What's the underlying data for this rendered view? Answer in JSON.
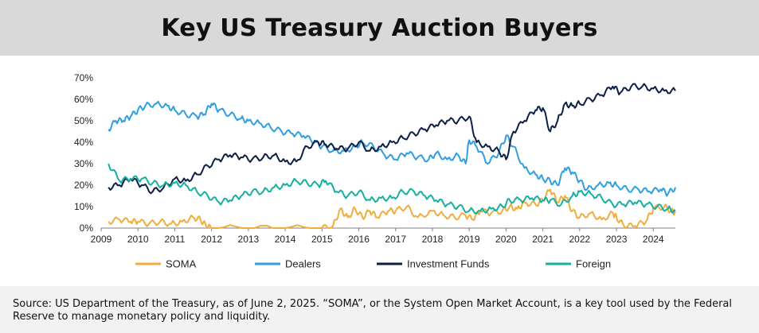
{
  "title": "Key US Treasury Auction Buyers",
  "source_note": "Source: US Department of the Treasury, as of June 2, 2025. “SOMA”, or the System Open Market Account, is a key tool used by the Federal Reserve to manage monetary policy and liquidity.",
  "chart_data": {
    "type": "line",
    "title": "Key US Treasury Auction Buyers",
    "xlabel": "",
    "ylabel": "",
    "xlim": [
      2009.0,
      2024.6
    ],
    "ylim": [
      0,
      70
    ],
    "x_ticks": [
      "2009",
      "2010",
      "2011",
      "2012",
      "2013",
      "2014",
      "2015",
      "2016",
      "2017",
      "2018",
      "2019",
      "2020",
      "2021",
      "2022",
      "2023",
      "2024"
    ],
    "y_ticks": [
      "0%",
      "10%",
      "20%",
      "30%",
      "40%",
      "50%",
      "60%",
      "70%"
    ],
    "grid": "none",
    "legend_position": "bottom",
    "series": [
      {
        "name": "SOMA",
        "color": "#f0ad3c",
        "points": [
          [
            2009.2,
            3
          ],
          [
            2009.5,
            4
          ],
          [
            2009.8,
            3
          ],
          [
            2010.0,
            3
          ],
          [
            2010.3,
            2
          ],
          [
            2010.6,
            3
          ],
          [
            2010.9,
            2
          ],
          [
            2011.2,
            3
          ],
          [
            2011.5,
            5
          ],
          [
            2011.7,
            4
          ],
          [
            2011.85,
            1
          ],
          [
            2012.0,
            0
          ],
          [
            2013.0,
            0
          ],
          [
            2014.0,
            0
          ],
          [
            2015.0,
            0
          ],
          [
            2015.3,
            1
          ],
          [
            2015.5,
            9
          ],
          [
            2015.7,
            5
          ],
          [
            2015.9,
            9
          ],
          [
            2016.1,
            5
          ],
          [
            2016.3,
            8
          ],
          [
            2016.5,
            5
          ],
          [
            2016.8,
            8
          ],
          [
            2017.0,
            8
          ],
          [
            2017.3,
            10
          ],
          [
            2017.6,
            5
          ],
          [
            2018.0,
            8
          ],
          [
            2018.3,
            6
          ],
          [
            2018.6,
            5
          ],
          [
            2018.9,
            6
          ],
          [
            2019.1,
            4
          ],
          [
            2019.3,
            8
          ],
          [
            2019.6,
            7
          ],
          [
            2019.9,
            8
          ],
          [
            2020.1,
            10
          ],
          [
            2020.3,
            9
          ],
          [
            2020.5,
            12
          ],
          [
            2020.8,
            11
          ],
          [
            2021.0,
            13
          ],
          [
            2021.2,
            18
          ],
          [
            2021.4,
            12
          ],
          [
            2021.6,
            15
          ],
          [
            2021.8,
            8
          ],
          [
            2022.0,
            5
          ],
          [
            2022.3,
            7
          ],
          [
            2022.6,
            4
          ],
          [
            2022.9,
            7
          ],
          [
            2023.0,
            5
          ],
          [
            2023.2,
            1
          ],
          [
            2023.5,
            1
          ],
          [
            2023.8,
            3
          ],
          [
            2024.0,
            9
          ],
          [
            2024.3,
            10
          ],
          [
            2024.5,
            8
          ],
          [
            2024.6,
            7
          ]
        ]
      },
      {
        "name": "Dealers",
        "color": "#2e9fe0",
        "points": [
          [
            2009.2,
            46
          ],
          [
            2009.4,
            50
          ],
          [
            2009.6,
            50
          ],
          [
            2009.8,
            52
          ],
          [
            2010.0,
            55
          ],
          [
            2010.2,
            57
          ],
          [
            2010.5,
            58
          ],
          [
            2010.8,
            57
          ],
          [
            2011.0,
            55
          ],
          [
            2011.3,
            53
          ],
          [
            2011.6,
            52
          ],
          [
            2011.8,
            53
          ],
          [
            2012.0,
            58
          ],
          [
            2012.2,
            55
          ],
          [
            2012.5,
            53
          ],
          [
            2012.8,
            51
          ],
          [
            2013.0,
            50
          ],
          [
            2013.3,
            49
          ],
          [
            2013.6,
            47
          ],
          [
            2013.9,
            45
          ],
          [
            2014.2,
            44
          ],
          [
            2014.5,
            43
          ],
          [
            2014.8,
            40
          ],
          [
            2015.0,
            38
          ],
          [
            2015.3,
            36
          ],
          [
            2015.6,
            36
          ],
          [
            2015.9,
            38
          ],
          [
            2016.1,
            40
          ],
          [
            2016.4,
            38
          ],
          [
            2016.7,
            34
          ],
          [
            2017.0,
            32
          ],
          [
            2017.3,
            35
          ],
          [
            2017.6,
            33
          ],
          [
            2017.9,
            32
          ],
          [
            2018.1,
            35
          ],
          [
            2018.4,
            32
          ],
          [
            2018.7,
            34
          ],
          [
            2018.9,
            30
          ],
          [
            2019.0,
            41
          ],
          [
            2019.2,
            38
          ],
          [
            2019.5,
            30
          ],
          [
            2019.8,
            35
          ],
          [
            2020.0,
            43
          ],
          [
            2020.2,
            38
          ],
          [
            2020.5,
            28
          ],
          [
            2020.8,
            25
          ],
          [
            2021.0,
            23
          ],
          [
            2021.2,
            22
          ],
          [
            2021.4,
            20
          ],
          [
            2021.6,
            28
          ],
          [
            2021.8,
            26
          ],
          [
            2022.0,
            22
          ],
          [
            2022.2,
            18
          ],
          [
            2022.5,
            20
          ],
          [
            2022.8,
            21
          ],
          [
            2023.0,
            20
          ],
          [
            2023.3,
            18
          ],
          [
            2023.6,
            18
          ],
          [
            2023.9,
            17
          ],
          [
            2024.2,
            18
          ],
          [
            2024.4,
            16
          ],
          [
            2024.6,
            19
          ]
        ]
      },
      {
        "name": "Investment Funds",
        "color": "#0c1f44",
        "points": [
          [
            2009.2,
            19
          ],
          [
            2009.5,
            20
          ],
          [
            2009.8,
            23
          ],
          [
            2010.1,
            20
          ],
          [
            2010.4,
            17
          ],
          [
            2010.7,
            19
          ],
          [
            2011.0,
            23
          ],
          [
            2011.3,
            22
          ],
          [
            2011.6,
            25
          ],
          [
            2011.9,
            29
          ],
          [
            2012.2,
            32
          ],
          [
            2012.5,
            34
          ],
          [
            2012.8,
            33
          ],
          [
            2013.1,
            32
          ],
          [
            2013.4,
            33
          ],
          [
            2013.7,
            34
          ],
          [
            2014.0,
            31
          ],
          [
            2014.3,
            31
          ],
          [
            2014.6,
            38
          ],
          [
            2014.9,
            40
          ],
          [
            2015.1,
            39
          ],
          [
            2015.4,
            37
          ],
          [
            2015.7,
            37
          ],
          [
            2016.0,
            40
          ],
          [
            2016.3,
            36
          ],
          [
            2016.6,
            38
          ],
          [
            2016.9,
            40
          ],
          [
            2017.2,
            42
          ],
          [
            2017.5,
            44
          ],
          [
            2017.8,
            46
          ],
          [
            2018.1,
            48
          ],
          [
            2018.4,
            50
          ],
          [
            2018.7,
            50
          ],
          [
            2019.0,
            52
          ],
          [
            2019.2,
            40
          ],
          [
            2019.5,
            38
          ],
          [
            2019.8,
            36
          ],
          [
            2020.0,
            32
          ],
          [
            2020.2,
            45
          ],
          [
            2020.5,
            50
          ],
          [
            2020.8,
            55
          ],
          [
            2021.0,
            56
          ],
          [
            2021.2,
            45
          ],
          [
            2021.4,
            50
          ],
          [
            2021.6,
            58
          ],
          [
            2021.8,
            57
          ],
          [
            2022.0,
            58
          ],
          [
            2022.3,
            60
          ],
          [
            2022.6,
            62
          ],
          [
            2022.9,
            66
          ],
          [
            2023.1,
            63
          ],
          [
            2023.4,
            66
          ],
          [
            2023.7,
            66
          ],
          [
            2024.0,
            65
          ],
          [
            2024.3,
            64
          ],
          [
            2024.6,
            64
          ]
        ]
      },
      {
        "name": "Foreign",
        "color": "#15b0a0",
        "points": [
          [
            2009.2,
            30
          ],
          [
            2009.5,
            22
          ],
          [
            2009.8,
            23
          ],
          [
            2010.1,
            23
          ],
          [
            2010.4,
            21
          ],
          [
            2010.7,
            20
          ],
          [
            2011.0,
            21
          ],
          [
            2011.3,
            20
          ],
          [
            2011.6,
            17
          ],
          [
            2011.9,
            15
          ],
          [
            2012.2,
            12
          ],
          [
            2012.5,
            13
          ],
          [
            2012.8,
            15
          ],
          [
            2013.1,
            17
          ],
          [
            2013.4,
            17
          ],
          [
            2013.7,
            19
          ],
          [
            2014.0,
            20
          ],
          [
            2014.3,
            22
          ],
          [
            2014.6,
            21
          ],
          [
            2014.9,
            20
          ],
          [
            2015.1,
            22
          ],
          [
            2015.4,
            17
          ],
          [
            2015.7,
            15
          ],
          [
            2016.0,
            17
          ],
          [
            2016.3,
            13
          ],
          [
            2016.6,
            14
          ],
          [
            2016.9,
            14
          ],
          [
            2017.2,
            17
          ],
          [
            2017.5,
            17
          ],
          [
            2017.8,
            15
          ],
          [
            2018.1,
            13
          ],
          [
            2018.4,
            11
          ],
          [
            2018.7,
            10
          ],
          [
            2019.0,
            8
          ],
          [
            2019.3,
            8
          ],
          [
            2019.6,
            9
          ],
          [
            2019.9,
            10
          ],
          [
            2020.1,
            13
          ],
          [
            2020.4,
            13
          ],
          [
            2020.7,
            14
          ],
          [
            2021.0,
            13
          ],
          [
            2021.2,
            13
          ],
          [
            2021.5,
            11
          ],
          [
            2021.8,
            15
          ],
          [
            2022.0,
            17
          ],
          [
            2022.3,
            16
          ],
          [
            2022.6,
            14
          ],
          [
            2022.9,
            11
          ],
          [
            2023.2,
            11
          ],
          [
            2023.5,
            12
          ],
          [
            2023.8,
            11
          ],
          [
            2024.1,
            10
          ],
          [
            2024.4,
            9
          ],
          [
            2024.6,
            8
          ]
        ]
      }
    ]
  }
}
